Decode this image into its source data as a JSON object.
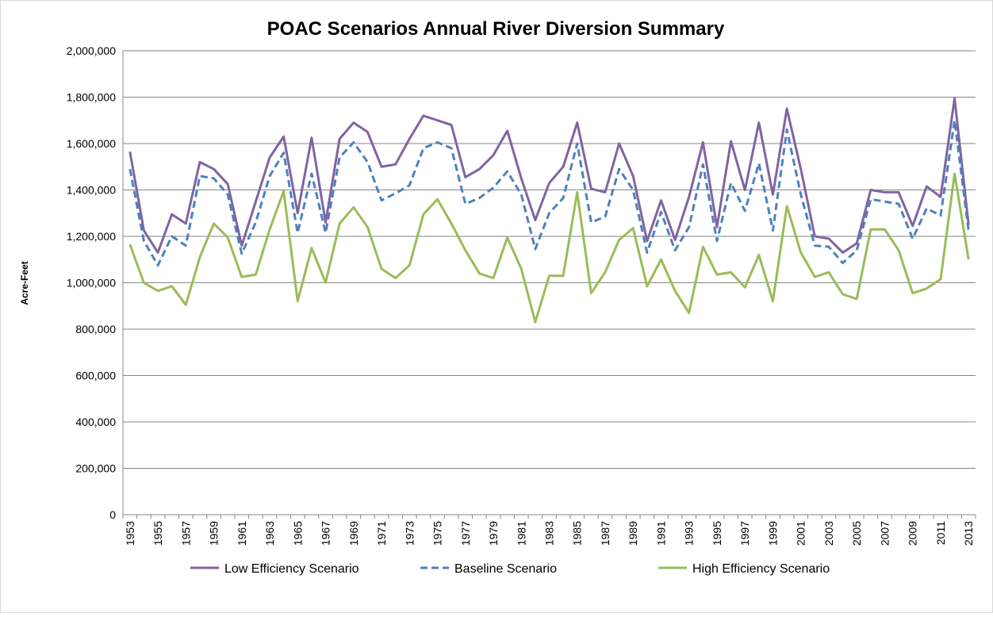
{
  "chart_data": {
    "type": "line",
    "title": "POAC Scenarios Annual River Diversion Summary",
    "y_label": "Acre-Feet",
    "categories": [
      "1953",
      null,
      "1955",
      null,
      "1957",
      null,
      "1959",
      null,
      "1961",
      null,
      "1963",
      null,
      "1965",
      null,
      "1967",
      null,
      "1969",
      null,
      "1971",
      null,
      "1973",
      null,
      "1975",
      null,
      "1977",
      null,
      "1979",
      null,
      "1981",
      null,
      "1983",
      null,
      "1985",
      null,
      "1987",
      null,
      "1989",
      null,
      "1991",
      null,
      "1993",
      null,
      "1995",
      null,
      "1997",
      null,
      "1999",
      null,
      "2001",
      null,
      "2003",
      null,
      "2005",
      null,
      "2007",
      null,
      "2009",
      null,
      "2011",
      null,
      "2013"
    ],
    "series": [
      {
        "name": "Low Efficiency Scenario",
        "color": "#8064a2",
        "dash": false,
        "values": [
          1565000,
          1225000,
          1130000,
          1295000,
          1255000,
          1520000,
          1490000,
          1425000,
          1160000,
          1350000,
          1540000,
          1630000,
          1300000,
          1625000,
          1260000,
          1620000,
          1690000,
          1650000,
          1500000,
          1510000,
          1620000,
          1720000,
          1700000,
          1680000,
          1455000,
          1490000,
          1550000,
          1655000,
          1450000,
          1270000,
          1430000,
          1500000,
          1690000,
          1405000,
          1390000,
          1600000,
          1460000,
          1180000,
          1355000,
          1185000,
          1370000,
          1605000,
          1240000,
          1610000,
          1400000,
          1690000,
          1380000,
          1750000,
          1490000,
          1200000,
          1190000,
          1130000,
          1170000,
          1400000,
          1390000,
          1390000,
          1245000,
          1415000,
          1370000,
          1795000,
          1250000
        ]
      },
      {
        "name": "Baseline Scenario",
        "color": "#4f81bd",
        "dash": true,
        "values": [
          1490000,
          1180000,
          1075000,
          1200000,
          1160000,
          1460000,
          1450000,
          1380000,
          1125000,
          1260000,
          1460000,
          1560000,
          1215000,
          1470000,
          1215000,
          1540000,
          1605000,
          1520000,
          1355000,
          1385000,
          1420000,
          1580000,
          1605000,
          1580000,
          1340000,
          1365000,
          1410000,
          1480000,
          1380000,
          1145000,
          1300000,
          1365000,
          1600000,
          1260000,
          1285000,
          1490000,
          1400000,
          1130000,
          1305000,
          1140000,
          1240000,
          1510000,
          1180000,
          1430000,
          1310000,
          1515000,
          1225000,
          1660000,
          1380000,
          1160000,
          1155000,
          1085000,
          1140000,
          1360000,
          1350000,
          1340000,
          1190000,
          1320000,
          1290000,
          1700000,
          1225000
        ]
      },
      {
        "name": "High Efficiency Scenario",
        "color": "#9bbb59",
        "dash": false,
        "values": [
          1165000,
          1000000,
          965000,
          985000,
          905000,
          1110000,
          1255000,
          1195000,
          1025000,
          1035000,
          1230000,
          1395000,
          920000,
          1150000,
          1000000,
          1255000,
          1325000,
          1240000,
          1060000,
          1020000,
          1075000,
          1295000,
          1360000,
          1255000,
          1140000,
          1040000,
          1020000,
          1195000,
          1060000,
          830000,
          1030000,
          1030000,
          1390000,
          955000,
          1045000,
          1185000,
          1235000,
          985000,
          1100000,
          965000,
          870000,
          1155000,
          1035000,
          1045000,
          980000,
          1120000,
          920000,
          1330000,
          1130000,
          1025000,
          1045000,
          950000,
          930000,
          1230000,
          1230000,
          1140000,
          955000,
          975000,
          1015000,
          1470000,
          1100000
        ]
      }
    ],
    "ylim": [
      0,
      2000000
    ],
    "yticks": [
      0,
      {
        "value": 200000,
        "label": "200,000"
      },
      {
        "value": 400000,
        "label": "400,000"
      },
      {
        "value": 600000,
        "label": "600,000"
      },
      {
        "value": 800000,
        "label": "800,000"
      },
      {
        "value": 1000000,
        "label": "1,000,000"
      },
      {
        "value": 1200000,
        "label": "1,200,000"
      },
      {
        "value": 1400000,
        "label": "1,400,000"
      },
      {
        "value": 1600000,
        "label": "1,600,000"
      },
      {
        "value": 1800000,
        "label": "1,800,000"
      },
      {
        "value": 2000000,
        "label": "2,000,000"
      }
    ],
    "grid": true,
    "legend": "bottom"
  }
}
